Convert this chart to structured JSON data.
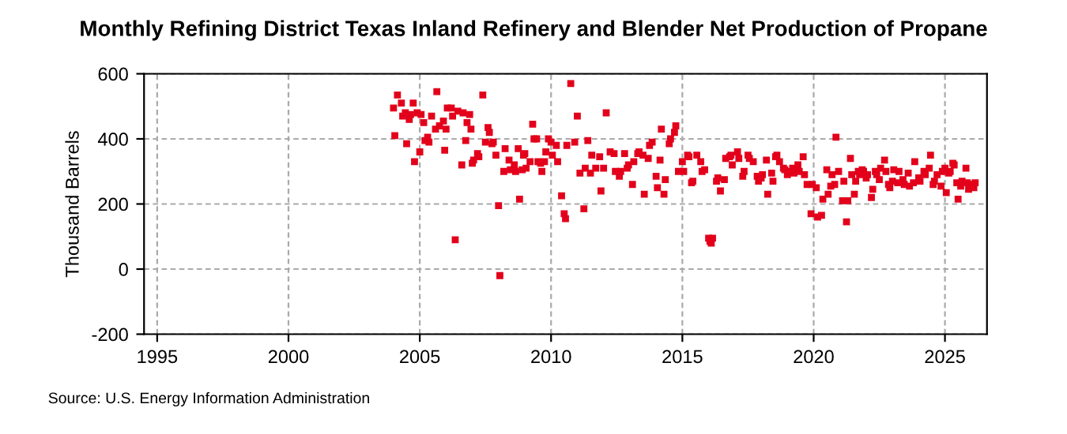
{
  "chart_data": {
    "type": "scatter",
    "title": "Monthly Refining District Texas Inland Refinery and Blender Net Production of Propane",
    "ylabel": "Thousand Barrels",
    "annotations": [
      "Source: U.S. Energy Information Administration"
    ],
    "x": [
      2004.0,
      2004.05,
      2004.15,
      2004.3,
      2004.35,
      2004.45,
      2004.5,
      2004.6,
      2004.65,
      2004.75,
      2004.8,
      2004.9,
      2005.0,
      2005.05,
      2005.15,
      2005.2,
      2005.3,
      2005.35,
      2005.45,
      2005.6,
      2005.65,
      2005.75,
      2005.9,
      2005.95,
      2006.0,
      2006.05,
      2006.2,
      2006.25,
      2006.35,
      2006.45,
      2006.6,
      2006.65,
      2006.75,
      2006.8,
      2006.9,
      2006.95,
      2007.0,
      2007.05,
      2007.2,
      2007.25,
      2007.4,
      2007.5,
      2007.6,
      2007.65,
      2007.75,
      2007.8,
      2007.9,
      2008.0,
      2008.05,
      2008.2,
      2008.25,
      2008.4,
      2008.45,
      2008.6,
      2008.65,
      2008.75,
      2008.8,
      2008.9,
      2008.95,
      2009.0,
      2009.05,
      2009.2,
      2009.3,
      2009.35,
      2009.45,
      2009.5,
      2009.6,
      2009.65,
      2009.75,
      2009.8,
      2009.9,
      2010.0,
      2010.05,
      2010.2,
      2010.25,
      2010.4,
      2010.5,
      2010.55,
      2010.6,
      2010.75,
      2010.9,
      2011.0,
      2011.1,
      2011.25,
      2011.3,
      2011.4,
      2011.5,
      2011.55,
      2011.7,
      2011.85,
      2011.9,
      2012.0,
      2012.1,
      2012.25,
      2012.4,
      2012.45,
      2012.6,
      2012.65,
      2012.8,
      2012.9,
      2012.95,
      2013.1,
      2013.15,
      2013.3,
      2013.35,
      2013.5,
      2013.55,
      2013.7,
      2013.75,
      2013.85,
      2014.0,
      2014.05,
      2014.15,
      2014.2,
      2014.3,
      2014.35,
      2014.5,
      2014.55,
      2014.7,
      2014.75,
      2014.85,
      2015.0,
      2015.05,
      2015.2,
      2015.25,
      2015.35,
      2015.4,
      2015.55,
      2015.7,
      2015.75,
      2015.85,
      2016.0,
      2016.05,
      2016.1,
      2016.15,
      2016.3,
      2016.35,
      2016.45,
      2016.6,
      2016.65,
      2016.8,
      2016.85,
      2016.9,
      2017.1,
      2017.15,
      2017.3,
      2017.35,
      2017.5,
      2017.55,
      2017.7,
      2017.85,
      2017.9,
      2018.0,
      2018.05,
      2018.2,
      2018.25,
      2018.4,
      2018.45,
      2018.55,
      2018.6,
      2018.7,
      2018.85,
      2018.9,
      2019.0,
      2019.05,
      2019.2,
      2019.25,
      2019.4,
      2019.45,
      2019.6,
      2019.65,
      2019.75,
      2019.9,
      2019.95,
      2020.1,
      2020.15,
      2020.3,
      2020.35,
      2020.5,
      2020.55,
      2020.65,
      2020.7,
      2020.8,
      2020.85,
      2020.95,
      2021.1,
      2021.15,
      2021.25,
      2021.3,
      2021.4,
      2021.45,
      2021.55,
      2021.6,
      2021.7,
      2021.75,
      2021.85,
      2021.9,
      2022.0,
      2022.05,
      2022.2,
      2022.25,
      2022.35,
      2022.4,
      2022.5,
      2022.55,
      2022.7,
      2022.75,
      2022.85,
      2022.9,
      2023.0,
      2023.05,
      2023.2,
      2023.25,
      2023.4,
      2023.45,
      2023.6,
      2023.65,
      2023.8,
      2023.85,
      2024.0,
      2024.05,
      2024.2,
      2024.25,
      2024.4,
      2024.45,
      2024.55,
      2024.6,
      2024.7,
      2024.85,
      2024.9,
      2025.0,
      2025.05,
      2025.15,
      2025.2,
      2025.3,
      2025.35,
      2025.45,
      2025.5,
      2025.6,
      2025.65,
      2025.8,
      2025.85,
      2025.9,
      2025.95,
      2026.1,
      2026.15
    ],
    "values": [
      495,
      410,
      535,
      510,
      470,
      480,
      385,
      460,
      475,
      510,
      330,
      480,
      360,
      475,
      450,
      395,
      405,
      390,
      470,
      430,
      545,
      440,
      455,
      365,
      430,
      495,
      495,
      470,
      90,
      485,
      320,
      480,
      395,
      450,
      475,
      430,
      325,
      335,
      355,
      345,
      535,
      390,
      435,
      420,
      385,
      390,
      350,
      195,
      -20,
      300,
      370,
      335,
      305,
      320,
      300,
      370,
      215,
      305,
      350,
      355,
      310,
      330,
      445,
      400,
      400,
      330,
      325,
      300,
      330,
      360,
      400,
      390,
      350,
      380,
      330,
      225,
      170,
      155,
      380,
      570,
      390,
      470,
      295,
      185,
      310,
      395,
      295,
      350,
      310,
      345,
      240,
      310,
      480,
      360,
      355,
      300,
      285,
      300,
      355,
      310,
      320,
      260,
      330,
      355,
      360,
      350,
      230,
      340,
      380,
      390,
      285,
      250,
      335,
      430,
      230,
      275,
      385,
      400,
      420,
      440,
      300,
      330,
      300,
      350,
      345,
      265,
      270,
      350,
      330,
      300,
      305,
      95,
      85,
      80,
      95,
      270,
      280,
      240,
      275,
      340,
      345,
      350,
      320,
      360,
      340,
      285,
      300,
      350,
      340,
      330,
      285,
      270,
      280,
      290,
      335,
      230,
      295,
      270,
      345,
      350,
      330,
      310,
      305,
      290,
      300,
      310,
      295,
      320,
      300,
      345,
      290,
      260,
      170,
      260,
      250,
      160,
      165,
      215,
      305,
      230,
      255,
      290,
      260,
      405,
      300,
      210,
      270,
      145,
      210,
      340,
      290,
      230,
      270,
      300,
      290,
      305,
      300,
      280,
      290,
      220,
      245,
      300,
      290,
      275,
      310,
      335,
      300,
      260,
      250,
      270,
      305,
      265,
      300,
      275,
      260,
      295,
      255,
      265,
      330,
      280,
      270,
      300,
      290,
      310,
      350,
      260,
      270,
      290,
      255,
      300,
      310,
      235,
      295,
      300,
      325,
      320,
      265,
      215,
      255,
      270,
      310,
      265,
      245,
      260,
      250,
      265
    ],
    "color": "#e3001b",
    "marker": "square",
    "xlim": [
      1994.5,
      2026.6
    ],
    "xticks": [
      1995,
      2000,
      2005,
      2010,
      2015,
      2020,
      2025
    ],
    "ylim": [
      -200,
      600
    ],
    "yticks": [
      -200,
      0,
      200,
      400,
      600
    ],
    "grid": true
  }
}
